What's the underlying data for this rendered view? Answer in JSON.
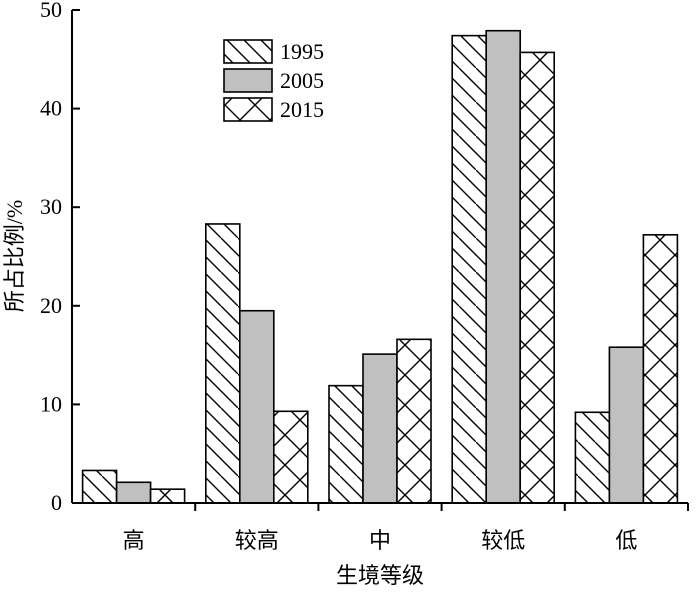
{
  "chart_data": {
    "type": "bar",
    "categories": [
      "高",
      "较高",
      "中",
      "较低",
      "低"
    ],
    "series": [
      {
        "name": "1995",
        "pattern": "diagonal-hatch",
        "fill": "#ffffff",
        "values": [
          3.3,
          28.3,
          11.9,
          47.4,
          9.2
        ]
      },
      {
        "name": "2005",
        "pattern": "solid",
        "fill": "#c0c0c0",
        "values": [
          2.1,
          19.5,
          15.1,
          47.9,
          15.8
        ]
      },
      {
        "name": "2015",
        "pattern": "cross-hatch",
        "fill": "#ffffff",
        "values": [
          1.4,
          9.3,
          16.6,
          45.7,
          27.2
        ]
      }
    ],
    "title": "",
    "xlabel": "生境等级",
    "ylabel": "所占比例/%",
    "ylim": [
      0,
      50
    ],
    "yticks": [
      0,
      10,
      20,
      30,
      40,
      50
    ],
    "grid": false,
    "legend_position": "top-left"
  }
}
